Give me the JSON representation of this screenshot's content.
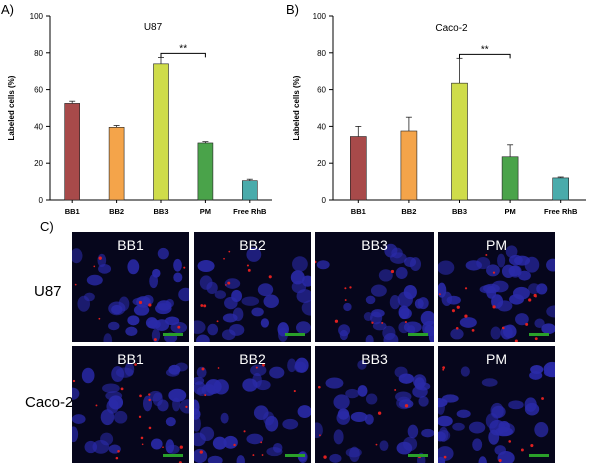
{
  "panels": {
    "a": "A)",
    "b": "B)",
    "c": "C)"
  },
  "chart_data": [
    {
      "type": "bar",
      "title": "U87",
      "ylabel": "Labeled cells (%)",
      "xlabel": "",
      "categories": [
        "BB1",
        "BB2",
        "BB3",
        "PM",
        "Free RhB"
      ],
      "values": [
        52.5,
        39.5,
        74,
        31,
        10.5
      ],
      "errors": [
        1.2,
        1.0,
        3.5,
        0.7,
        0.8
      ],
      "colors": [
        "#a84a4a",
        "#f4a44a",
        "#cfdc4a",
        "#4aa34a",
        "#4aabab"
      ],
      "ylim": [
        0,
        100
      ],
      "yticks": [
        0,
        20,
        40,
        60,
        80,
        100
      ],
      "significance": {
        "from": "BB3",
        "to": "PM",
        "label": "**"
      },
      "grid": false
    },
    {
      "type": "bar",
      "title": "Caco-2",
      "ylabel": "Labeled cells (%)",
      "xlabel": "",
      "categories": [
        "BB1",
        "BB2",
        "BB3",
        "PM",
        "Free RhB"
      ],
      "values": [
        34.5,
        37.5,
        63.5,
        23.5,
        12
      ],
      "errors": [
        5.5,
        7.5,
        13.5,
        6.5,
        0.5
      ],
      "colors": [
        "#a84a4a",
        "#f4a44a",
        "#cfdc4a",
        "#4aa34a",
        "#4aabab"
      ],
      "ylim": [
        0,
        100
      ],
      "yticks": [
        0,
        20,
        40,
        60,
        80,
        100
      ],
      "significance": {
        "from": "BB3",
        "to": "PM",
        "label": "**"
      },
      "grid": false
    }
  ],
  "micrographs": {
    "rows": [
      "U87",
      "Caco-2"
    ],
    "columns": [
      "BB1",
      "BB2",
      "BB3",
      "PM"
    ],
    "colors": {
      "nuclei": "#2a2aa8",
      "particles": "#e02020",
      "background": "#06061c",
      "scale_bar": "#2aa02a"
    }
  }
}
